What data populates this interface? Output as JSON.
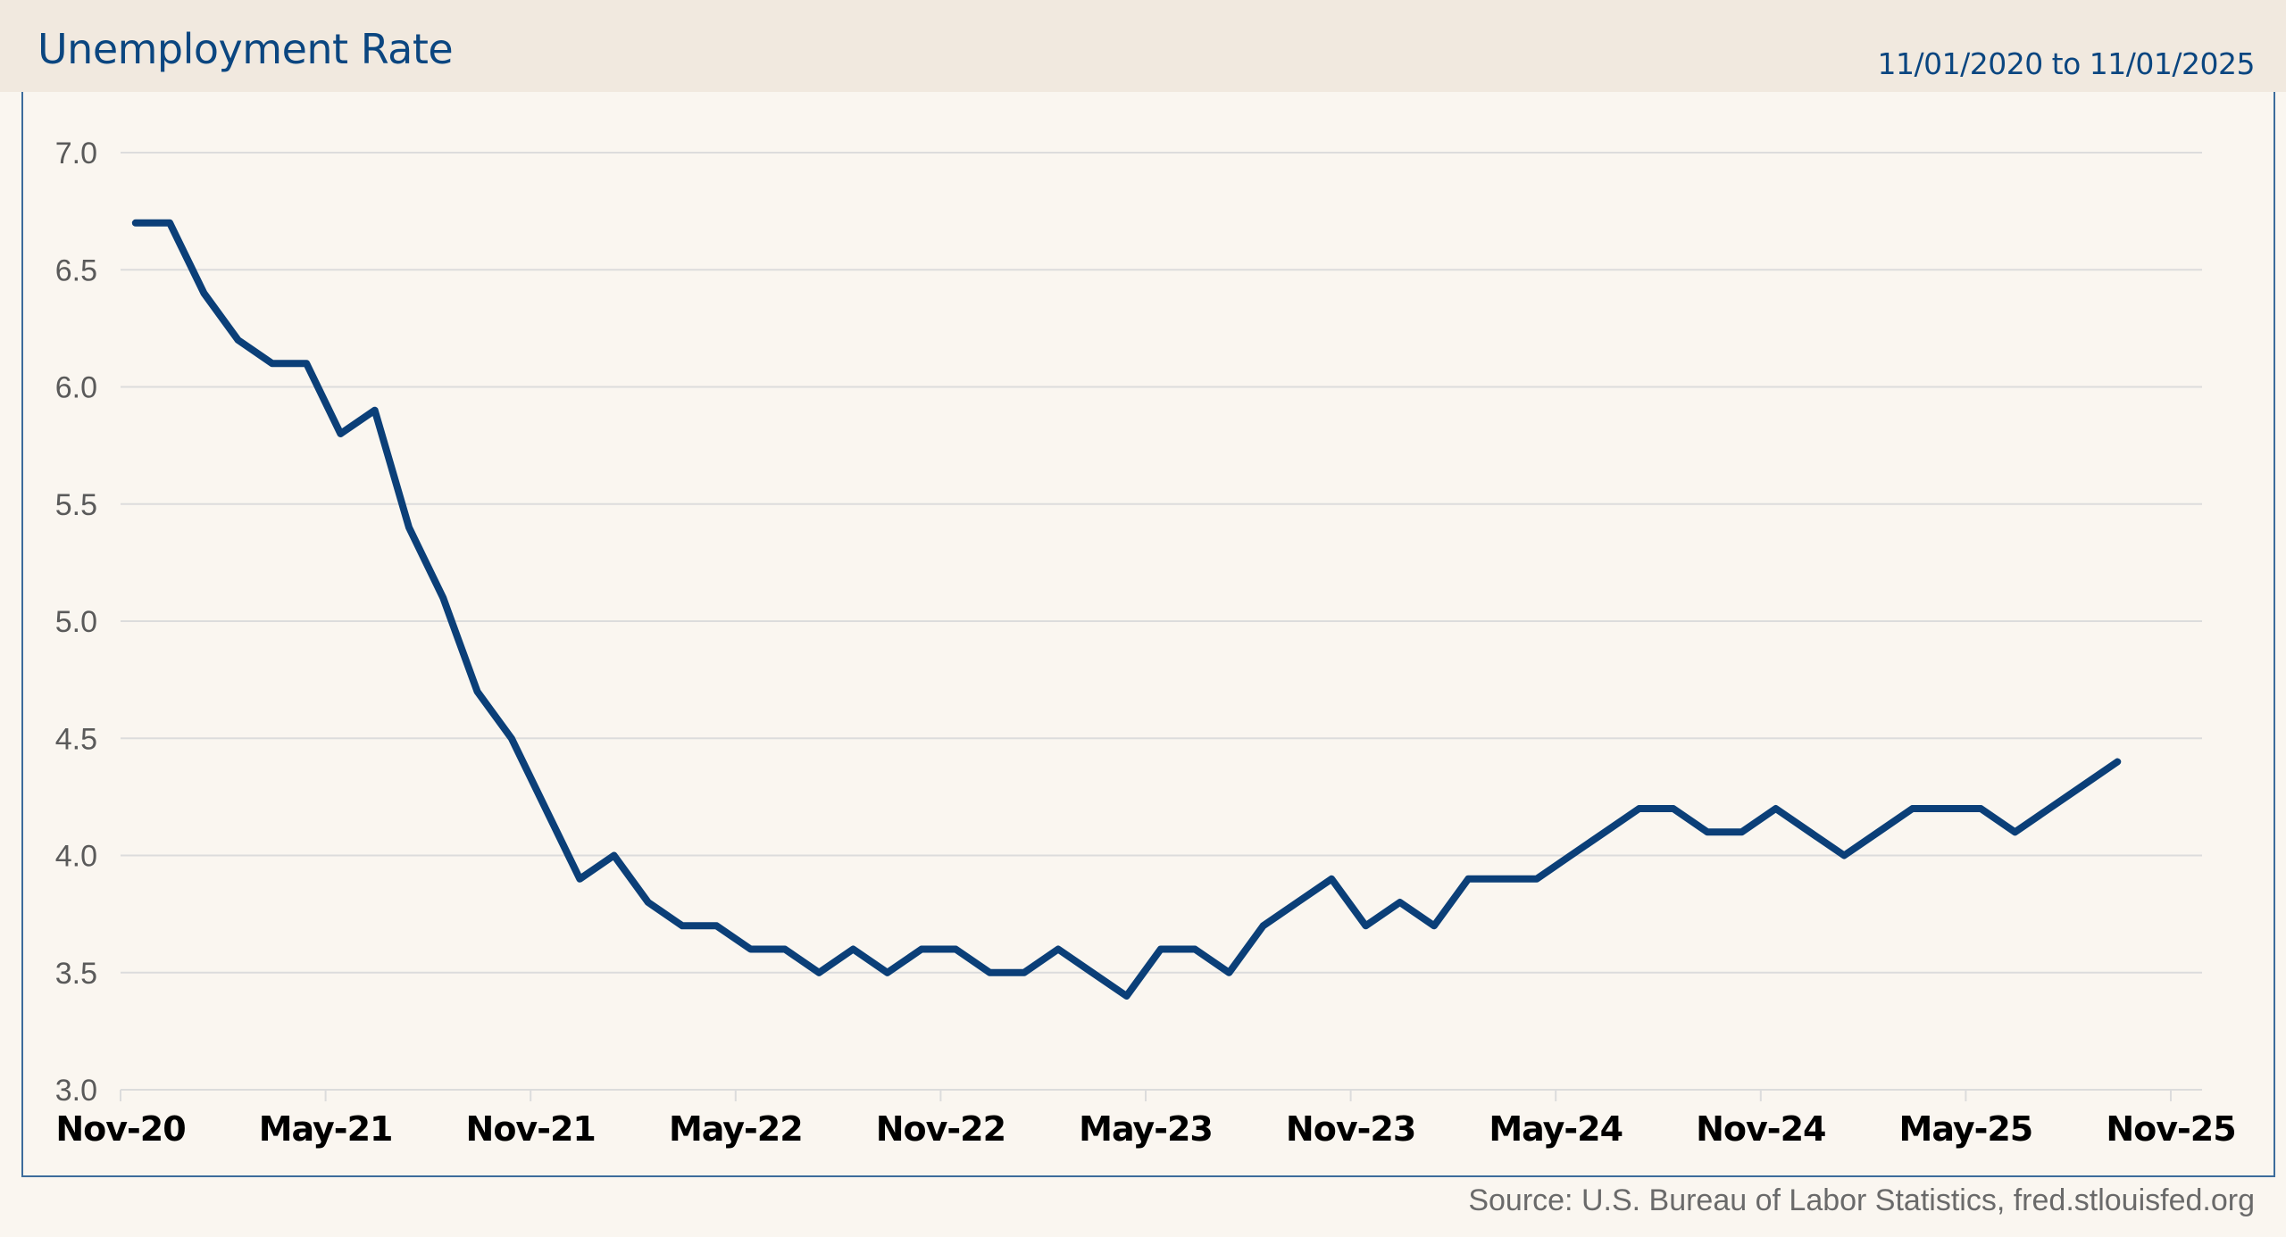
{
  "header": {
    "title": "Unemployment Rate",
    "date_range": "11/01/2020 to 11/01/2025"
  },
  "source": "Source: U.S. Bureau of Labor Statistics, fred.stlouisfed.org",
  "colors": {
    "line": "#0b3f78",
    "title": "#0b4680",
    "grid": "#dcdcdc",
    "header_bg": "#f1e9df",
    "bg": "#faf6f0"
  },
  "chart_data": {
    "type": "line",
    "title": "Unemployment Rate",
    "xlabel": "",
    "ylabel": "",
    "ylim": [
      3.0,
      7.0
    ],
    "yticks": [
      "3.0",
      "3.5",
      "4.0",
      "4.5",
      "5.0",
      "5.5",
      "6.0",
      "6.5",
      "7.0"
    ],
    "xticks": [
      "Nov-20",
      "May-21",
      "Nov-21",
      "May-22",
      "Nov-22",
      "May-23",
      "Nov-23",
      "May-24",
      "Nov-24",
      "May-25",
      "Nov-25"
    ],
    "grid": true,
    "series": [
      {
        "name": "Unemployment Rate",
        "start": "Nov-2020",
        "frequency": "monthly",
        "values": [
          6.7,
          6.7,
          6.4,
          6.2,
          6.1,
          6.1,
          5.8,
          5.9,
          5.4,
          5.1,
          4.7,
          4.5,
          4.2,
          3.9,
          4.0,
          3.8,
          3.7,
          3.7,
          3.6,
          3.6,
          3.5,
          3.6,
          3.5,
          3.6,
          3.6,
          3.5,
          3.5,
          3.6,
          3.5,
          3.4,
          3.6,
          3.6,
          3.5,
          3.7,
          3.8,
          3.9,
          3.7,
          3.8,
          3.7,
          3.9,
          3.9,
          3.9,
          4.0,
          4.1,
          4.2,
          4.2,
          4.1,
          4.1,
          4.2,
          4.1,
          4.0,
          4.1,
          4.2,
          4.2,
          4.2,
          4.1,
          4.2,
          4.3,
          4.4
        ]
      }
    ]
  }
}
